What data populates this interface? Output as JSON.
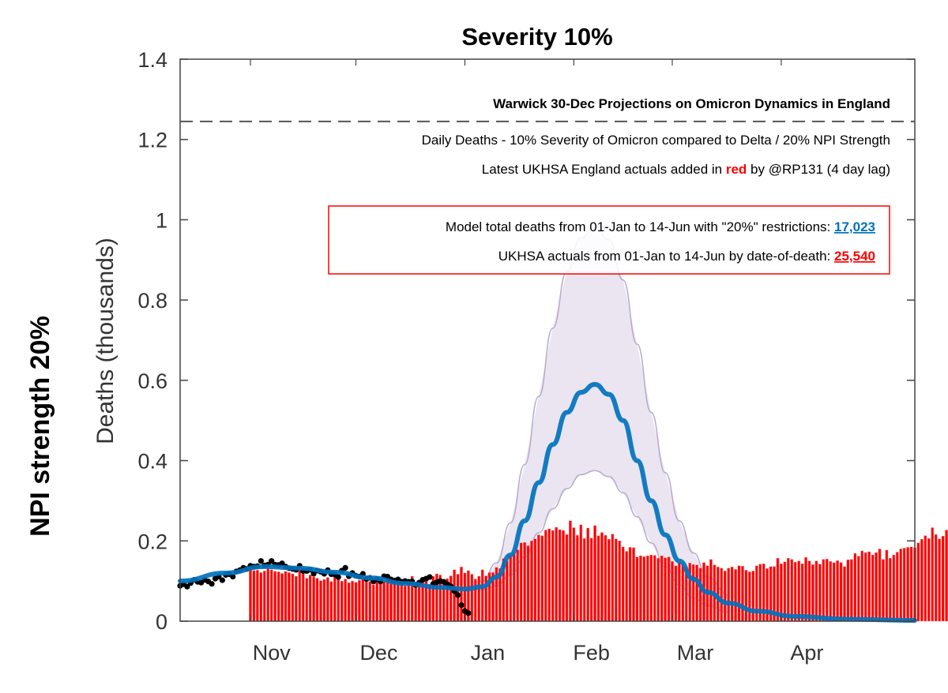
{
  "chart_data": {
    "type": "bar",
    "title": "Severity 10%",
    "side_label": "NPI strength 20%",
    "xlabel": "",
    "ylabel": "Deaths (thousands)",
    "ylim": [
      0,
      1.4
    ],
    "yticks": [
      0,
      0.2,
      0.4,
      0.6,
      0.8,
      1.0,
      1.2,
      1.4
    ],
    "ytick_labels": [
      "0",
      "0.2",
      "0.4",
      "0.6",
      "0.8",
      "1",
      "1.2",
      "1.4"
    ],
    "xlim_dates": [
      "2021-10-12",
      "2022-05-09"
    ],
    "xtick_labels": [
      "Nov",
      "Dec",
      "Jan",
      "Feb",
      "Mar",
      "Apr"
    ],
    "xtick_dates": [
      "2021-11-01",
      "2021-12-01",
      "2022-01-01",
      "2022-02-01",
      "2022-03-01",
      "2022-04-01"
    ],
    "grid": false,
    "reference_line": {
      "y": 1.245,
      "style": "dashed",
      "color": "#555555"
    },
    "annotations": {
      "header": "Warwick 30-Dec Projections on Omicron Dynamics in England",
      "line1": "Daily Deaths - 10% Severity of Omicron compared to Delta / 20% NPI Strength",
      "line2_prefix": "Latest UKHSA England actuals added in ",
      "line2_red": "red",
      "line2_suffix": " by @RP131 (4 day lag)",
      "box_line1_prefix": "Model total deaths from 01-Jan to 14-Jun with \"20%\" restrictions: ",
      "box_line1_value": "17,023",
      "box_line2_prefix": "UKHSA actuals from 01-Jan to 14-Jun by date-of-death: ",
      "box_line2_value": "25,540"
    },
    "colors": {
      "actuals_bars": "#ff0000",
      "model_median": "#0072bd",
      "model_band_fill": "#e8e2ee",
      "model_band_edge": "#b8a8cc",
      "observed_points": "#000000",
      "box_border": "#ff0000"
    },
    "series": [
      {
        "name": "UKHSA actuals (daily deaths, thousands)",
        "kind": "bar",
        "start_date": "2021-11-01",
        "values": [
          0.133,
          0.126,
          0.127,
          0.121,
          0.125,
          0.131,
          0.128,
          0.124,
          0.123,
          0.119,
          0.124,
          0.121,
          0.118,
          0.112,
          0.128,
          0.123,
          0.107,
          0.115,
          0.11,
          0.107,
          0.101,
          0.104,
          0.109,
          0.099,
          0.114,
          0.111,
          0.1,
          0.105,
          0.096,
          0.1,
          0.097,
          0.102,
          0.107,
          0.098,
          0.099,
          0.091,
          0.103,
          0.102,
          0.099,
          0.107,
          0.104,
          0.097,
          0.097,
          0.095,
          0.088,
          0.097,
          0.112,
          0.093,
          0.093,
          0.1,
          0.1,
          0.092,
          0.112,
          0.118,
          0.115,
          0.102,
          0.106,
          0.113,
          0.128,
          0.117,
          0.135,
          0.12,
          0.126,
          0.117,
          0.105,
          0.112,
          0.128,
          0.113,
          0.121,
          0.121,
          0.134,
          0.131,
          0.156,
          0.15,
          0.162,
          0.17,
          0.178,
          0.195,
          0.196,
          0.188,
          0.2,
          0.205,
          0.215,
          0.213,
          0.227,
          0.23,
          0.226,
          0.234,
          0.228,
          0.226,
          0.216,
          0.25,
          0.233,
          0.214,
          0.24,
          0.206,
          0.232,
          0.207,
          0.238,
          0.213,
          0.221,
          0.214,
          0.204,
          0.217,
          0.205,
          0.2,
          0.185,
          0.174,
          0.184,
          0.183,
          0.16,
          0.163,
          0.161,
          0.163,
          0.165,
          0.164,
          0.157,
          0.163,
          0.158,
          0.16,
          0.149,
          0.138,
          0.145,
          0.14,
          0.134,
          0.145,
          0.141,
          0.14,
          0.132,
          0.146,
          0.138,
          0.154,
          0.14,
          0.135,
          0.132,
          0.125,
          0.132,
          0.135,
          0.129,
          0.138,
          0.137,
          0.127,
          0.123,
          0.125,
          0.138,
          0.142,
          0.143,
          0.131,
          0.136,
          0.136,
          0.157,
          0.143,
          0.148,
          0.157,
          0.154,
          0.147,
          0.15,
          0.143,
          0.159,
          0.15,
          0.141,
          0.15,
          0.142,
          0.154,
          0.155,
          0.149,
          0.146,
          0.151,
          0.146,
          0.136,
          0.153,
          0.154,
          0.169,
          0.162,
          0.175,
          0.171,
          0.173,
          0.165,
          0.171,
          0.18,
          0.154,
          0.177,
          0.157,
          0.165,
          0.172,
          0.18,
          0.182,
          0.184,
          0.185,
          0.183,
          0.195,
          0.204,
          0.213,
          0.206,
          0.233,
          0.216,
          0.205,
          0.212,
          0.227,
          0.229,
          0.242,
          0.223,
          0.225,
          0.219,
          0.235,
          0.238,
          0.224,
          0.207,
          0.215,
          0.209,
          0.211,
          0.186,
          0.199,
          0.19,
          0.194,
          0.186,
          0.173,
          0.177,
          0.171,
          0.174,
          0.178,
          0.167,
          0.177,
          0.172,
          0.168,
          0.16,
          0.156,
          0.155,
          0.154,
          0.156,
          0.153,
          0.15,
          0.148,
          0.146,
          0.145,
          0.145
        ]
      },
      {
        "name": "Observed deaths used for model fit (thousands)",
        "kind": "scatter",
        "start_date": "2021-10-12",
        "values": [
          0.088,
          0.092,
          0.086,
          0.095,
          0.103,
          0.098,
          0.096,
          0.103,
          0.099,
          0.093,
          0.106,
          0.111,
          0.102,
          0.115,
          0.117,
          0.111,
          0.124,
          0.127,
          0.133,
          0.13,
          0.138,
          0.136,
          0.137,
          0.15,
          0.139,
          0.141,
          0.15,
          0.141,
          0.14,
          0.144,
          0.136,
          0.132,
          0.13,
          0.128,
          0.138,
          0.125,
          0.125,
          0.128,
          0.118,
          0.126,
          0.123,
          0.118,
          0.127,
          0.117,
          0.116,
          0.11,
          0.126,
          0.133,
          0.112,
          0.12,
          0.113,
          0.111,
          0.118,
          0.105,
          0.108,
          0.099,
          0.105,
          0.099,
          0.112,
          0.111,
          0.104,
          0.101,
          0.104,
          0.098,
          0.1,
          0.098,
          0.099,
          0.09,
          0.096,
          0.103,
          0.106,
          0.11,
          0.093,
          0.097,
          0.1,
          0.098,
          0.092,
          0.087,
          0.075,
          0.065,
          0.04,
          0.025,
          0.02
        ]
      },
      {
        "name": "Model median (thousands)",
        "kind": "line",
        "points": [
          [
            "2021-10-12",
            0.1
          ],
          [
            "2021-10-25",
            0.12
          ],
          [
            "2021-11-05",
            0.136
          ],
          [
            "2021-11-15",
            0.132
          ],
          [
            "2021-11-25",
            0.122
          ],
          [
            "2021-12-05",
            0.108
          ],
          [
            "2021-12-15",
            0.094
          ],
          [
            "2021-12-25",
            0.084
          ],
          [
            "2022-01-01",
            0.08
          ],
          [
            "2022-01-06",
            0.086
          ],
          [
            "2022-01-10",
            0.11
          ],
          [
            "2022-01-14",
            0.165
          ],
          [
            "2022-01-18",
            0.25
          ],
          [
            "2022-01-22",
            0.345
          ],
          [
            "2022-01-26",
            0.44
          ],
          [
            "2022-01-30",
            0.52
          ],
          [
            "2022-02-03",
            0.57
          ],
          [
            "2022-02-07",
            0.59
          ],
          [
            "2022-02-11",
            0.565
          ],
          [
            "2022-02-15",
            0.5
          ],
          [
            "2022-02-19",
            0.4
          ],
          [
            "2022-02-23",
            0.3
          ],
          [
            "2022-02-27",
            0.215
          ],
          [
            "2022-03-03",
            0.15
          ],
          [
            "2022-03-07",
            0.105
          ],
          [
            "2022-03-11",
            0.072
          ],
          [
            "2022-03-17",
            0.045
          ],
          [
            "2022-03-25",
            0.025
          ],
          [
            "2022-04-05",
            0.012
          ],
          [
            "2022-04-20",
            0.005
          ],
          [
            "2022-05-09",
            0.002
          ]
        ]
      },
      {
        "name": "Model uncertainty band (thousands)",
        "kind": "area",
        "upper": [
          [
            "2022-01-01",
            0.085
          ],
          [
            "2022-01-06",
            0.1
          ],
          [
            "2022-01-10",
            0.145
          ],
          [
            "2022-01-14",
            0.245
          ],
          [
            "2022-01-18",
            0.39
          ],
          [
            "2022-01-22",
            0.56
          ],
          [
            "2022-01-26",
            0.73
          ],
          [
            "2022-01-30",
            0.87
          ],
          [
            "2022-02-03",
            0.955
          ],
          [
            "2022-02-07",
            0.98
          ],
          [
            "2022-02-11",
            0.95
          ],
          [
            "2022-02-15",
            0.85
          ],
          [
            "2022-02-19",
            0.69
          ],
          [
            "2022-02-23",
            0.52
          ],
          [
            "2022-02-27",
            0.37
          ],
          [
            "2022-03-03",
            0.25
          ],
          [
            "2022-03-07",
            0.17
          ],
          [
            "2022-03-11",
            0.11
          ],
          [
            "2022-03-17",
            0.065
          ]
        ],
        "lower": [
          [
            "2022-01-01",
            0.075
          ],
          [
            "2022-01-06",
            0.078
          ],
          [
            "2022-01-10",
            0.088
          ],
          [
            "2022-01-14",
            0.115
          ],
          [
            "2022-01-18",
            0.16
          ],
          [
            "2022-01-22",
            0.22
          ],
          [
            "2022-01-26",
            0.28
          ],
          [
            "2022-01-30",
            0.33
          ],
          [
            "2022-02-03",
            0.365
          ],
          [
            "2022-02-07",
            0.375
          ],
          [
            "2022-02-11",
            0.36
          ],
          [
            "2022-02-15",
            0.32
          ],
          [
            "2022-02-19",
            0.26
          ],
          [
            "2022-02-23",
            0.195
          ],
          [
            "2022-02-27",
            0.135
          ],
          [
            "2022-03-03",
            0.09
          ],
          [
            "2022-03-07",
            0.058
          ],
          [
            "2022-03-11",
            0.038
          ],
          [
            "2022-03-17",
            0.022
          ]
        ]
      }
    ]
  }
}
